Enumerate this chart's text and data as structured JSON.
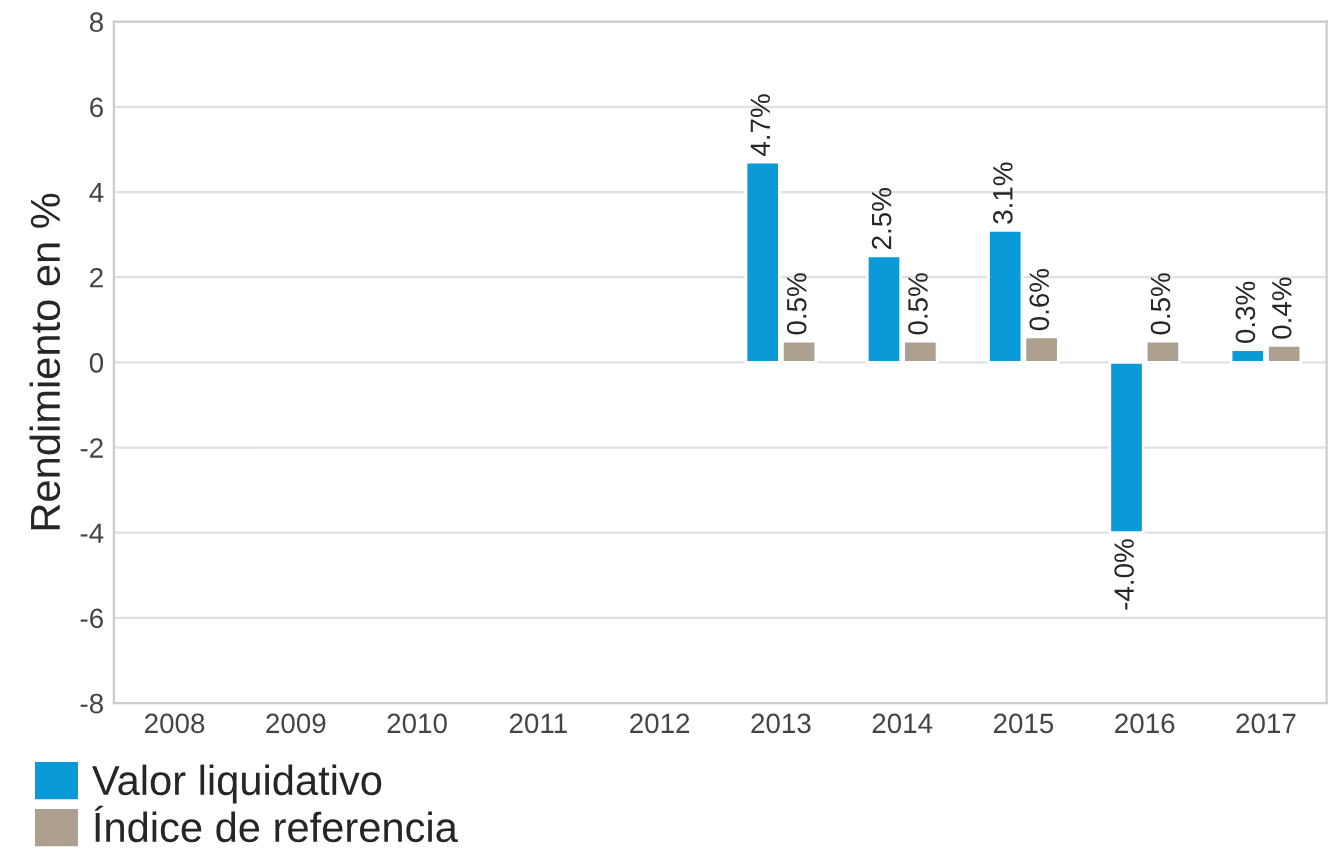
{
  "chart_data": {
    "type": "bar",
    "ylabel": "Rendimiento en %",
    "categories": [
      "2008",
      "2009",
      "2010",
      "2011",
      "2012",
      "2013",
      "2014",
      "2015",
      "2016",
      "2017"
    ],
    "series": [
      {
        "name": "Valor liquidativo",
        "color": "#0a9ad7",
        "values": [
          null,
          null,
          null,
          null,
          null,
          4.7,
          2.5,
          3.1,
          -4.0,
          0.3
        ],
        "value_labels": [
          null,
          null,
          null,
          null,
          null,
          "4.7%",
          "2.5%",
          "3.1%",
          "-4.0%",
          "0.3%"
        ]
      },
      {
        "name": "Índice de referencia",
        "color": "#ada08f",
        "values": [
          null,
          null,
          null,
          null,
          null,
          0.5,
          0.5,
          0.6,
          0.5,
          0.4
        ],
        "value_labels": [
          null,
          null,
          null,
          null,
          null,
          "0.5%",
          "0.5%",
          "0.6%",
          "0.5%",
          "0.4%"
        ]
      }
    ],
    "ylim": [
      -8,
      8
    ],
    "yticks": [
      -8,
      -6,
      -4,
      -2,
      0,
      2,
      4,
      6,
      8
    ],
    "grid": "y",
    "legend": "bottom left"
  }
}
